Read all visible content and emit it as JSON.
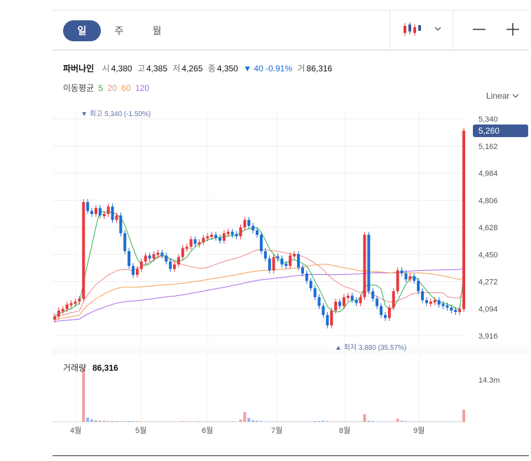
{
  "tabs": [
    "일",
    "주",
    "월"
  ],
  "info": {
    "name": "파버나인",
    "open_label": "시",
    "open": "4,380",
    "high_label": "고",
    "high": "4,385",
    "low_label": "저",
    "low": "4,265",
    "close_label": "종",
    "close": "4,350",
    "change": "▼ 40 -0.91%",
    "volume_label": "거",
    "volume": "86,316"
  },
  "ma": {
    "label": "이동평균",
    "p5": "5",
    "p20": "20",
    "p60": "60",
    "p120": "120"
  },
  "scale_label": "Linear",
  "annotations": {
    "high": "▼ 최고 5,340 (-1.50%)",
    "low": "▲ 최저 3,880 (35.57%)"
  },
  "current_price": "5,260",
  "volume_panel": {
    "label": "거래량",
    "value": "86,316",
    "max_label": "14.3m"
  },
  "colors": {
    "up": "#e8383d",
    "down": "#1b6ed6",
    "accent": "#3e5a96",
    "ma5": "#2bb24c",
    "ma20": "#f08a8a",
    "ma60": "#f5a055",
    "ma120": "#a86ce8"
  },
  "chart_data": {
    "type": "candlestick",
    "y_ticks": [
      "5,340",
      "5,162",
      "4,984",
      "4,806",
      "4,628",
      "4,450",
      "4,272",
      "4,094",
      "3,916"
    ],
    "x_ticks": [
      "4월",
      "5월",
      "6월",
      "7월",
      "8월",
      "9월"
    ],
    "ylim": [
      3880,
      5340
    ],
    "price_series": [
      4010,
      4050,
      4060,
      4090,
      4100,
      4110,
      4130,
      4780,
      4720,
      4700,
      4740,
      4690,
      4700,
      4750,
      4660,
      4690,
      4570,
      4450,
      4350,
      4290,
      4330,
      4380,
      4420,
      4400,
      4430,
      4440,
      4420,
      4380,
      4330,
      4360,
      4410,
      4470,
      4480,
      4530,
      4500,
      4510,
      4540,
      4550,
      4560,
      4540,
      4520,
      4570,
      4580,
      4560,
      4550,
      4610,
      4660,
      4620,
      4590,
      4560,
      4450,
      4400,
      4320,
      4410,
      4400,
      4360,
      4350,
      4420,
      4430,
      4340,
      4300,
      4250,
      4200,
      4140,
      4080,
      4020,
      3950,
      4050,
      4110,
      4080,
      4140,
      4150,
      4120,
      4100,
      4140,
      4560,
      4180,
      4130,
      4080,
      4020,
      4000,
      4070,
      4180,
      4320,
      4300,
      4260,
      4280,
      4250,
      4180,
      4120,
      4100,
      4110,
      4120,
      4090,
      4080,
      4070,
      4050,
      4040,
      4060,
      5260
    ],
    "volume_series": [
      0.02,
      0.02,
      0.03,
      0.02,
      0.02,
      0.03,
      0.02,
      14.3,
      1.1,
      0.6,
      0.4,
      0.3,
      0.3,
      0.2,
      0.2,
      0.2,
      0.15,
      0.15,
      0.2,
      0.15,
      0.15,
      0.1,
      0.1,
      0.1,
      0.1,
      0.1,
      0.1,
      0.1,
      0.1,
      0.1,
      0.1,
      0.15,
      0.15,
      0.1,
      0.1,
      0.15,
      0.1,
      0.1,
      0.1,
      0.1,
      0.1,
      0.1,
      0.1,
      0.15,
      0.1,
      0.6,
      2.6,
      1.0,
      0.4,
      0.3,
      0.2,
      0.1,
      0.1,
      0.1,
      0.1,
      0.1,
      0.1,
      0.1,
      0.1,
      0.1,
      0.1,
      0.1,
      0.1,
      0.2,
      0.2,
      0.3,
      0.2,
      0.1,
      0.1,
      0.1,
      0.1,
      0.1,
      0.1,
      0.1,
      0.1,
      2.0,
      0.3,
      0.2,
      0.1,
      0.1,
      0.1,
      0.1,
      0.1,
      0.8,
      0.3,
      0.2,
      0.1,
      0.1,
      0.1,
      0.1,
      0.1,
      0.1,
      0.1,
      0.1,
      0.1,
      0.1,
      0.1,
      0.1,
      0.1,
      3.2
    ],
    "high_value": 5340,
    "low_value": 3880
  }
}
